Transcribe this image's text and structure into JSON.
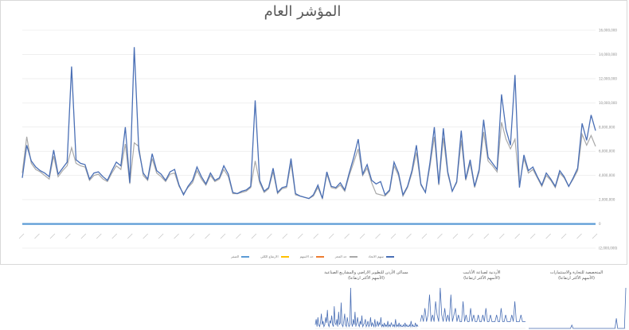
{
  "colors": {
    "main": "#4a6fb5",
    "series2": "#a9a9a9",
    "series3": "#ed7d31",
    "series4": "#ffc000",
    "series5": "#5b9bd5",
    "grid": "#e6e6e6"
  },
  "chart_data": [
    {
      "type": "line",
      "title": "المؤشر العام",
      "ylim": [
        -2000000,
        16000000
      ],
      "yticks": [
        -2000000,
        0,
        2000000,
        4000000,
        6000000,
        8000000,
        10000000,
        12000000,
        14000000,
        16000000
      ],
      "ytick_labels": [
        "(2,000,000)",
        "0",
        "2,000,000",
        "4,000,000",
        "6,000,000",
        "8,000,000",
        "10,000,000",
        "12,000,000",
        "14,000,000",
        "16,000,000"
      ],
      "grid": true,
      "legend_position": "bottom",
      "series": [
        {
          "name": "سهم الاتحاد",
          "values": [
            3800000,
            6500000,
            5200000,
            4700000,
            4400000,
            4200000,
            3900000,
            6100000,
            4100000,
            4600000,
            5100000,
            13000000,
            5300000,
            5000000,
            4900000,
            3700000,
            4200000,
            4300000,
            3900000,
            3600000,
            4400000,
            5100000,
            4800000,
            8000000,
            3400000,
            14600000,
            6100000,
            4200000,
            3700000,
            5800000,
            4400000,
            4100000,
            3600000,
            4300000,
            4500000,
            3200000,
            2400000,
            3100000,
            3600000,
            4700000,
            3900000,
            3300000,
            4200000,
            3600000,
            3800000,
            4800000,
            4100000,
            2600000,
            2500000,
            2700000,
            2800000,
            3100000,
            10200000,
            3600000,
            2700000,
            3000000,
            4600000,
            2600000,
            3000000,
            3100000,
            5400000,
            2500000,
            2300000,
            2200000,
            2100000,
            2400000,
            3200000,
            2100000,
            4300000,
            3100000,
            3000000,
            3400000,
            2800000,
            4200000,
            5500000,
            7000000,
            4100000,
            4900000,
            3600000,
            3300000,
            3500000,
            2400000,
            2800000,
            5100000,
            4200000,
            2400000,
            3100000,
            4400000,
            6500000,
            3300000,
            2600000,
            5000000,
            8000000,
            3300000,
            7900000,
            4300000,
            2700000,
            3500000,
            7700000,
            3700000,
            5300000,
            3100000,
            4500000,
            8600000,
            5500000,
            5000000,
            4500000,
            10700000,
            7800000,
            6500000,
            12300000,
            3000000,
            5700000,
            4400000,
            4700000,
            3900000,
            3200000,
            4200000,
            3700000,
            3100000,
            4400000,
            3900000,
            3100000,
            3800000,
            4600000,
            8300000,
            6900000,
            9000000,
            7700000
          ],
          "color": "#4a6fb5"
        },
        {
          "name": "حد العجز",
          "values": [
            4200000,
            7200000,
            5000000,
            4500000,
            4300000,
            4000000,
            3700000,
            5600000,
            3900000,
            4400000,
            4800000,
            6300000,
            5000000,
            4800000,
            4700000,
            3600000,
            4000000,
            4100000,
            3700000,
            3500000,
            4200000,
            4800000,
            4500000,
            6600000,
            3300000,
            6700000,
            6400000,
            4000000,
            3600000,
            5400000,
            4200000,
            3900000,
            3500000,
            4100000,
            4200000,
            3100000,
            2500000,
            3000000,
            3400000,
            4400000,
            3700000,
            3200000,
            4000000,
            3500000,
            3700000,
            4500000,
            3900000,
            2500000,
            2500000,
            2600000,
            2700000,
            3000000,
            5200000,
            3400000,
            2600000,
            2900000,
            4300000,
            2500000,
            2900000,
            3000000,
            5000000,
            2400000,
            2300000,
            2200000,
            2100000,
            2300000,
            3000000,
            2100000,
            4100000,
            3000000,
            2900000,
            3200000,
            2700000,
            4000000,
            5100000,
            6200000,
            4000000,
            4600000,
            3400000,
            2500000,
            2400000,
            2300000,
            2700000,
            4800000,
            4000000,
            2300000,
            3000000,
            4200000,
            5900000,
            3200000,
            2600000,
            4700000,
            7200000,
            3200000,
            7100000,
            4100000,
            2700000,
            3400000,
            6900000,
            3600000,
            5000000,
            3000000,
            4300000,
            7600000,
            5200000,
            4800000,
            4300000,
            8400000,
            7000000,
            6200000,
            7000000,
            3200000,
            5400000,
            4200000,
            4500000,
            3800000,
            3100000,
            4000000,
            3600000,
            3000000,
            4200000,
            3800000,
            3100000,
            3700000,
            4400000,
            7400000,
            6500000,
            7300000,
            6400000
          ],
          "color": "#a9a9a9"
        },
        {
          "name": "حد الاسهم",
          "values": [],
          "color": "#ed7d31"
        },
        {
          "name": "الارتفاع الكلي",
          "values": [],
          "color": "#ffc000"
        },
        {
          "name": "الصفر",
          "values": [
            0,
            0,
            0,
            0,
            0,
            0,
            0,
            0,
            0,
            0,
            0,
            0,
            0,
            0,
            0,
            0,
            0,
            0,
            0,
            0,
            0,
            0,
            0,
            0,
            0,
            0,
            0,
            0,
            0,
            0,
            0,
            0,
            0,
            0,
            0,
            0,
            0,
            0,
            0,
            0,
            0,
            0,
            0,
            0,
            0,
            0,
            0,
            0,
            0,
            0,
            0,
            0,
            0,
            0,
            0,
            0,
            0,
            0,
            0,
            0,
            0,
            0,
            0,
            0,
            0,
            0,
            0,
            0,
            0,
            0,
            0,
            0,
            0,
            0,
            0,
            0,
            0,
            0,
            0,
            0,
            0,
            0,
            0,
            0,
            0,
            0,
            0,
            0,
            0,
            0,
            0,
            0,
            0,
            0,
            0,
            0,
            0,
            0,
            0,
            0,
            0,
            0,
            0,
            0,
            0,
            0,
            0,
            0,
            0,
            0,
            0,
            0,
            0,
            0,
            0,
            0,
            0,
            0,
            0,
            0,
            0,
            0,
            0,
            0,
            0,
            0,
            0,
            0,
            0
          ],
          "color": "#5b9bd5"
        }
      ]
    },
    {
      "type": "line",
      "title": "مساكن الأردن للتطوير الاراضي والمشاريع الصناعية",
      "subtitle": "(الأسهم الأكثر ارتفاعا)",
      "series": [
        {
          "name": "",
          "values": [
            2,
            5,
            1,
            6,
            2,
            1,
            3,
            8,
            2,
            4,
            1,
            2,
            6,
            3,
            10,
            2,
            1,
            4,
            3,
            7,
            2,
            1,
            12,
            3,
            2,
            5,
            1,
            9,
            2,
            3,
            14,
            2,
            1,
            4,
            8,
            2,
            1,
            6,
            3,
            1,
            2,
            22,
            3,
            1,
            5,
            2,
            9,
            1,
            3,
            6,
            2,
            1,
            4,
            2,
            7,
            1,
            2,
            3,
            5,
            1,
            2,
            4,
            1,
            2,
            6,
            1,
            3,
            2,
            1,
            5,
            1,
            2,
            4,
            1,
            3,
            2,
            6,
            1,
            2,
            1,
            3,
            1,
            2,
            1,
            4,
            1,
            2,
            1,
            3,
            2,
            1,
            2,
            1,
            5,
            1,
            2,
            1,
            3,
            1,
            2,
            1,
            1,
            2,
            1,
            3,
            1,
            2,
            1,
            1,
            2,
            1,
            4,
            1,
            2,
            1,
            1,
            3,
            1,
            2,
            1
          ],
          "color": "#4a6fb5"
        }
      ]
    },
    {
      "type": "line",
      "title": "الأردنية لصناعة الأنابيب",
      "subtitle": "(الأسهم الأكثر ارتفاعا)",
      "series": [
        {
          "name": "",
          "values": [
            1,
            2,
            1,
            3,
            1,
            2,
            5,
            1,
            2,
            1,
            4,
            2,
            1,
            6,
            2,
            1,
            3,
            1,
            2,
            1,
            5,
            1,
            2,
            3,
            1,
            2,
            1,
            1,
            4,
            1,
            2,
            1,
            1,
            3,
            1,
            2,
            1,
            1,
            2,
            1,
            1,
            2,
            1,
            3,
            1,
            1,
            2,
            1,
            1,
            1,
            2,
            1,
            1,
            3,
            1,
            1,
            2,
            1,
            1,
            1,
            2,
            1,
            4,
            1,
            1,
            1,
            2,
            1,
            1,
            1
          ],
          "color": "#4a6fb5"
        }
      ]
    },
    {
      "type": "line",
      "title": "المتخصصة للتجارة والاستثمارات",
      "subtitle": "(الأسهم الأكثر ارتفاعا)",
      "series": [
        {
          "name": "",
          "values": [
            0,
            0,
            0,
            0,
            0,
            0,
            0,
            0,
            0,
            0,
            0,
            0,
            0,
            0,
            0,
            0,
            0,
            0,
            0,
            0,
            0,
            0,
            0,
            0,
            0,
            0,
            0,
            0,
            0,
            0,
            0,
            0,
            1,
            0,
            0,
            0,
            0,
            0,
            0,
            0,
            0,
            0,
            0,
            0,
            0,
            0,
            0,
            0,
            0,
            0,
            0,
            0,
            0,
            0,
            0,
            0,
            0,
            0,
            0,
            0,
            0,
            0,
            0,
            0,
            0,
            3,
            0,
            0,
            0,
            0,
            0,
            0,
            12
          ],
          "color": "#4a6fb5"
        }
      ]
    }
  ]
}
